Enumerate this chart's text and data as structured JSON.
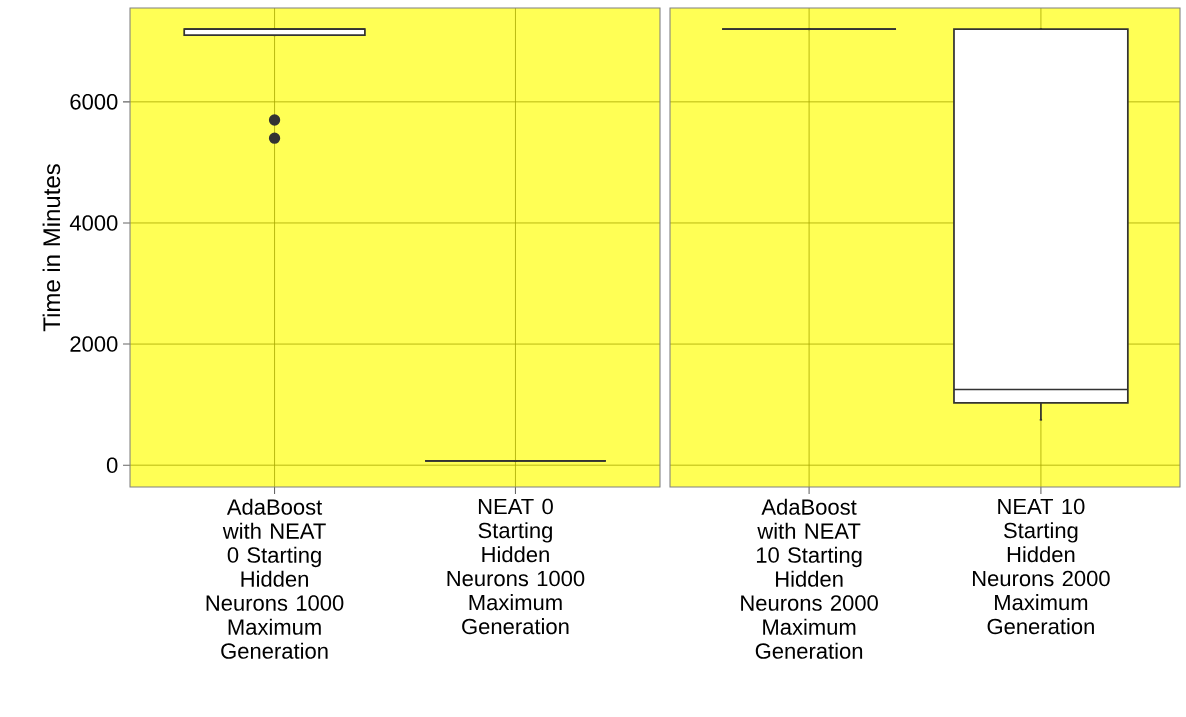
{
  "chart_data": [
    {
      "type": "box",
      "ylabel": "Time in Minutes",
      "categories": [
        "AdaBoost with NEAT 0 Starting Hidden Neurons 1000 Maximum Generation",
        "NEAT 0 Starting Hidden Neurons 1000 Maximum Generation"
      ],
      "boxes": [
        {
          "low": 7100,
          "q1": 7100,
          "median": 7200,
          "q3": 7200,
          "high": 7200,
          "outliers": [
            5700,
            5400
          ]
        },
        {
          "low": 70,
          "q1": 70,
          "median": 70,
          "q3": 70,
          "high": 70
        }
      ],
      "ylim": [
        -360,
        7550
      ],
      "yticks": [
        0,
        2000,
        4000,
        6000
      ],
      "grid": true
    },
    {
      "type": "box",
      "categories": [
        "AdaBoost with NEAT 10 Starting Hidden Neurons 2000 Maximum Generation",
        "NEAT 10 Starting Hidden Neurons 2000 Maximum Generation"
      ],
      "boxes": [
        {
          "low": 7200,
          "q1": 7200,
          "median": 7200,
          "q3": 7200,
          "high": 7200
        },
        {
          "low": 750,
          "q1": 1030,
          "median": 1250,
          "q3": 7200,
          "high": 7200
        }
      ],
      "ylim": [
        -360,
        7550
      ],
      "yticks": [
        0,
        2000,
        4000,
        6000
      ],
      "grid": true,
      "tick_labels": "x"
    }
  ]
}
